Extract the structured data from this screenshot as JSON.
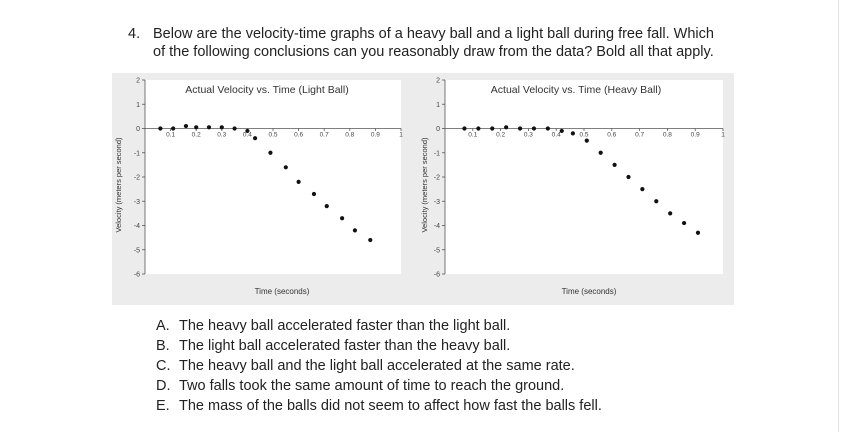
{
  "question": {
    "number": "4.",
    "line1": "Below are the velocity-time graphs of a heavy ball and a light ball during free fall.  Which",
    "line2": "of the following conclusions can you reasonably draw from the data? Bold all that apply."
  },
  "chart_data": [
    {
      "type": "scatter",
      "title": "Actual Velocity vs. Time (Light Ball)",
      "xlabel": "Time (seconds)",
      "ylabel": "Velocity (meters per second)",
      "xlim": [
        0,
        1
      ],
      "ylim": [
        -6,
        2
      ],
      "x_ticks": [
        "0.1",
        "0.2",
        "0.3",
        "0.4",
        "0.5",
        "0.6",
        "0.7",
        "0.8",
        "0.9",
        "1"
      ],
      "y_ticks": [
        "2",
        "1",
        "0",
        "-1",
        "-2",
        "-3",
        "-4",
        "-5",
        "-6"
      ],
      "points": [
        {
          "x": 0.06,
          "y": 0.0
        },
        {
          "x": 0.11,
          "y": 0.0
        },
        {
          "x": 0.16,
          "y": 0.1
        },
        {
          "x": 0.2,
          "y": 0.05
        },
        {
          "x": 0.25,
          "y": 0.05
        },
        {
          "x": 0.3,
          "y": 0.05
        },
        {
          "x": 0.35,
          "y": 0.0
        },
        {
          "x": 0.4,
          "y": -0.1
        },
        {
          "x": 0.43,
          "y": -0.4
        },
        {
          "x": 0.49,
          "y": -1.0
        },
        {
          "x": 0.55,
          "y": -1.6
        },
        {
          "x": 0.6,
          "y": -2.2
        },
        {
          "x": 0.66,
          "y": -2.7
        },
        {
          "x": 0.71,
          "y": -3.2
        },
        {
          "x": 0.77,
          "y": -3.7
        },
        {
          "x": 0.82,
          "y": -4.2
        },
        {
          "x": 0.88,
          "y": -4.6
        }
      ]
    },
    {
      "type": "scatter",
      "title": "Actual Velocity vs. Time (Heavy Ball)",
      "xlabel": "Time (seconds)",
      "ylabel": "Velocity (meters per second)",
      "xlim": [
        0,
        1
      ],
      "ylim": [
        -6,
        2
      ],
      "x_ticks": [
        "0.1",
        "0.2",
        "0.3",
        "0.4",
        "0.5",
        "0.6",
        "0.7",
        "0.8",
        "0.9",
        "1"
      ],
      "y_ticks": [
        "2",
        "1",
        "0",
        "-1",
        "-2",
        "-3",
        "-4",
        "-5",
        "-6"
      ],
      "points": [
        {
          "x": 0.07,
          "y": 0.0
        },
        {
          "x": 0.12,
          "y": 0.0
        },
        {
          "x": 0.17,
          "y": 0.0
        },
        {
          "x": 0.22,
          "y": 0.05
        },
        {
          "x": 0.27,
          "y": 0.0
        },
        {
          "x": 0.32,
          "y": 0.0
        },
        {
          "x": 0.37,
          "y": 0.0
        },
        {
          "x": 0.42,
          "y": -0.1
        },
        {
          "x": 0.46,
          "y": -0.2
        },
        {
          "x": 0.51,
          "y": -0.5
        },
        {
          "x": 0.56,
          "y": -1.0
        },
        {
          "x": 0.61,
          "y": -1.5
        },
        {
          "x": 0.66,
          "y": -2.0
        },
        {
          "x": 0.71,
          "y": -2.5
        },
        {
          "x": 0.76,
          "y": -3.0
        },
        {
          "x": 0.81,
          "y": -3.5
        },
        {
          "x": 0.86,
          "y": -3.9
        },
        {
          "x": 0.91,
          "y": -4.3
        }
      ]
    }
  ],
  "options": [
    {
      "letter": "A.",
      "text": "The heavy ball accelerated faster than the light ball."
    },
    {
      "letter": "B.",
      "text": "The light ball accelerated faster than the heavy ball."
    },
    {
      "letter": "C.",
      "text": "The heavy ball and the light ball accelerated at the same rate."
    },
    {
      "letter": "D.",
      "text": "Two falls took the same amount of time to reach the ground."
    },
    {
      "letter": "E.",
      "text": "The mass of the balls did not seem to affect how fast the balls fell."
    }
  ]
}
